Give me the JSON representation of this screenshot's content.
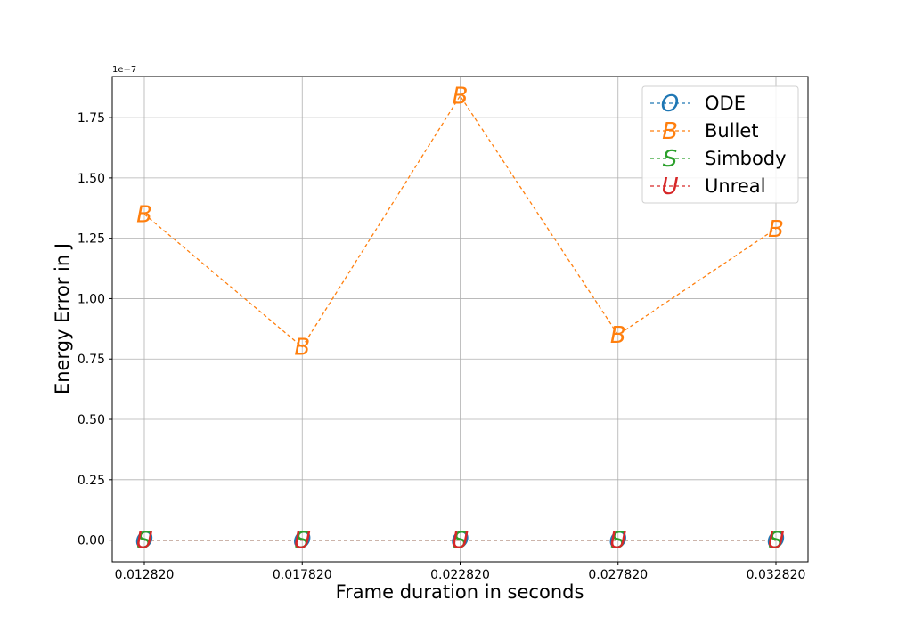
{
  "chart_data": {
    "type": "line",
    "xlabel": "Frame duration in seconds",
    "ylabel": "Energy Error in J",
    "y_scale_label": "1e−7",
    "categories": [
      "0.012820",
      "0.017820",
      "0.022820",
      "0.027820",
      "0.032820"
    ],
    "ylim": [
      -0.09,
      1.92
    ],
    "yticks": [
      0.0,
      0.25,
      0.5,
      0.75,
      1.0,
      1.25,
      1.5,
      1.75
    ],
    "ytick_labels": [
      "0.00",
      "0.25",
      "0.50",
      "0.75",
      "1.00",
      "1.25",
      "1.50",
      "1.75"
    ],
    "grid": true,
    "legend_position": "top-right",
    "series": [
      {
        "name": "ODE",
        "marker": "O",
        "color": "#1f77b4",
        "values": [
          0.0,
          0.0,
          0.0,
          0.0,
          0.0
        ]
      },
      {
        "name": "Bullet",
        "marker": "B",
        "color": "#ff7f0e",
        "values": [
          1.35,
          0.8,
          1.84,
          0.85,
          1.29
        ]
      },
      {
        "name": "Simbody",
        "marker": "S",
        "color": "#2ca02c",
        "values": [
          0.0,
          0.0,
          0.0,
          0.0,
          0.0
        ]
      },
      {
        "name": "Unreal",
        "marker": "U",
        "color": "#d62728",
        "values": [
          0.0,
          0.0,
          0.0,
          0.0,
          0.0
        ]
      }
    ]
  }
}
